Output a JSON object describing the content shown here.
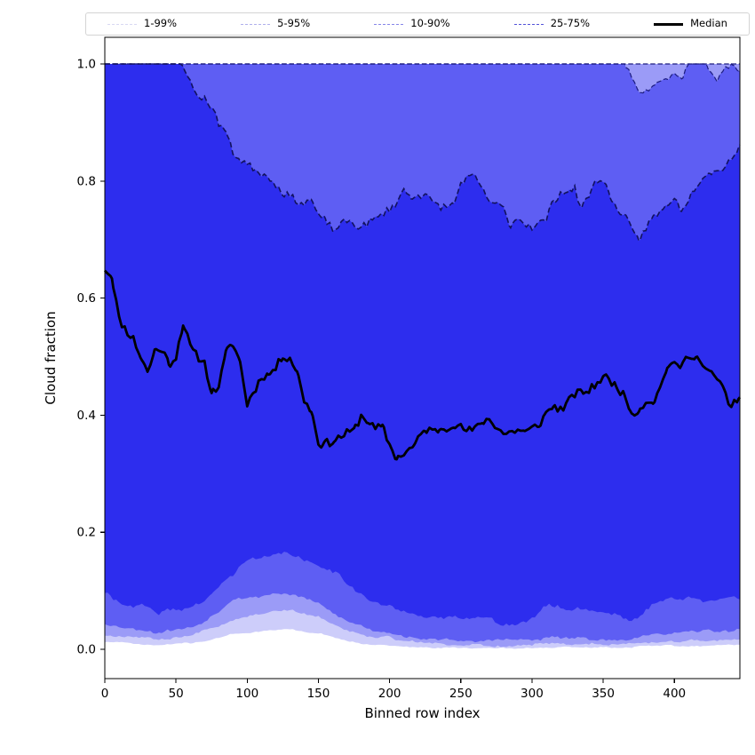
{
  "figure": {
    "background": "#ffffff"
  },
  "legend": {
    "items": [
      {
        "label": "1-99%",
        "color": "#d8d8f2",
        "style": "dashed",
        "weight": 1.6
      },
      {
        "label": "5-95%",
        "color": "#b0b0ec",
        "style": "dashed",
        "weight": 1.6
      },
      {
        "label": "10-90%",
        "color": "#8686e8",
        "style": "dashed",
        "weight": 1.6
      },
      {
        "label": "25-75%",
        "color": "#5252d8",
        "style": "dashed",
        "weight": 1.8
      },
      {
        "label": "Median",
        "color": "#000000",
        "style": "solid",
        "weight": 3
      }
    ]
  },
  "chart_data": {
    "type": "area",
    "title": "",
    "xlabel": "Binned row index",
    "ylabel": "Cloud fraction",
    "xlim": [
      0,
      446
    ],
    "ylim": [
      -0.05,
      1.045
    ],
    "xticks": [
      0,
      50,
      100,
      150,
      200,
      250,
      300,
      350,
      400
    ],
    "yticks": [
      0.0,
      0.2,
      0.4,
      0.6,
      0.8,
      1.0
    ],
    "grid": false,
    "legend_position": "top",
    "x_start": 0,
    "x_sample_step": 5,
    "bands": [
      {
        "name": "1-99%",
        "lower": "p1",
        "upper": "p99",
        "fill": "#cdcdfa"
      },
      {
        "name": "5-95%",
        "lower": "p5",
        "upper": "p95",
        "fill": "#9b9bf7"
      },
      {
        "name": "10-90%",
        "lower": "p10",
        "upper": "p90",
        "fill": "#5e5ef3"
      },
      {
        "name": "25-75%",
        "lower": "p25",
        "upper": "p75",
        "fill": "#2d2dee"
      }
    ],
    "median_style": {
      "color": "#000000",
      "width": 2.8
    },
    "edge_lines": [
      {
        "series": "p99",
        "color": "#1c1c80",
        "width": 1.2,
        "dash": [
          5.5,
          2.8
        ]
      },
      {
        "series": "p90",
        "color": "#1c1c80",
        "width": 1.2,
        "dash": [
          5.5,
          2.8
        ]
      },
      {
        "series": "p75",
        "color": "#12125e",
        "width": 1.6,
        "dash": [
          6,
          3.2
        ]
      }
    ],
    "jitter": {
      "median": [
        0.007,
        0.01
      ],
      "p75": [
        0.006,
        0.009
      ],
      "p90": [
        0.005,
        0.006
      ],
      "p25": [
        0.003,
        0.005
      ],
      "p10": [
        0.002,
        0.003
      ],
      "p5": [
        0.0015,
        0.0022
      ],
      "p1": [
        0.0008,
        0.0012
      ]
    },
    "series": {
      "median": [
        0.655,
        0.64,
        0.565,
        0.545,
        0.53,
        0.495,
        0.47,
        0.52,
        0.52,
        0.49,
        0.5,
        0.555,
        0.52,
        0.505,
        0.49,
        0.44,
        0.46,
        0.51,
        0.52,
        0.49,
        0.42,
        0.45,
        0.475,
        0.47,
        0.48,
        0.5,
        0.495,
        0.47,
        0.42,
        0.4,
        0.36,
        0.36,
        0.35,
        0.355,
        0.36,
        0.365,
        0.39,
        0.385,
        0.375,
        0.38,
        0.35,
        0.33,
        0.34,
        0.35,
        0.36,
        0.37,
        0.375,
        0.385,
        0.38,
        0.385,
        0.385,
        0.38,
        0.38,
        0.395,
        0.4,
        0.385,
        0.37,
        0.375,
        0.38,
        0.375,
        0.38,
        0.385,
        0.4,
        0.405,
        0.405,
        0.42,
        0.44,
        0.445,
        0.44,
        0.45,
        0.455,
        0.455,
        0.455,
        0.43,
        0.4,
        0.41,
        0.43,
        0.43,
        0.45,
        0.48,
        0.485,
        0.495,
        0.505,
        0.5,
        0.483,
        0.47,
        0.46,
        0.44,
        0.42,
        0.435
      ],
      "p75": [
        1.0,
        1.0,
        1.0,
        1.0,
        1.0,
        1.0,
        1.0,
        1.0,
        1.0,
        1.0,
        1.0,
        0.995,
        0.97,
        0.95,
        0.94,
        0.925,
        0.895,
        0.885,
        0.858,
        0.838,
        0.825,
        0.818,
        0.808,
        0.8,
        0.79,
        0.783,
        0.777,
        0.77,
        0.76,
        0.765,
        0.742,
        0.74,
        0.718,
        0.725,
        0.73,
        0.727,
        0.726,
        0.733,
        0.738,
        0.745,
        0.752,
        0.77,
        0.79,
        0.77,
        0.78,
        0.784,
        0.77,
        0.76,
        0.754,
        0.755,
        0.79,
        0.8,
        0.803,
        0.785,
        0.772,
        0.765,
        0.757,
        0.72,
        0.732,
        0.726,
        0.722,
        0.732,
        0.74,
        0.775,
        0.78,
        0.775,
        0.79,
        0.76,
        0.78,
        0.8,
        0.8,
        0.77,
        0.762,
        0.745,
        0.717,
        0.692,
        0.712,
        0.732,
        0.74,
        0.75,
        0.77,
        0.76,
        0.775,
        0.795,
        0.81,
        0.818,
        0.82,
        0.83,
        0.84,
        0.855
      ],
      "p90": [
        1.0,
        1.0,
        1.0,
        1.0,
        1.0,
        1.0,
        1.0,
        1.0,
        1.0,
        1.0,
        1.0,
        1.0,
        1.0,
        1.0,
        1.0,
        1.0,
        1.0,
        1.0,
        1.0,
        1.0,
        1.0,
        1.0,
        1.0,
        1.0,
        1.0,
        1.0,
        1.0,
        1.0,
        1.0,
        1.0,
        1.0,
        1.0,
        1.0,
        1.0,
        1.0,
        1.0,
        1.0,
        1.0,
        1.0,
        1.0,
        1.0,
        1.0,
        1.0,
        1.0,
        1.0,
        1.0,
        1.0,
        1.0,
        1.0,
        1.0,
        1.0,
        1.0,
        1.0,
        1.0,
        1.0,
        1.0,
        1.0,
        1.0,
        1.0,
        1.0,
        1.0,
        1.0,
        1.0,
        1.0,
        1.0,
        1.0,
        1.0,
        1.0,
        1.0,
        1.0,
        1.0,
        1.0,
        1.0,
        1.0,
        0.975,
        0.952,
        0.948,
        0.962,
        0.968,
        0.975,
        0.985,
        0.982,
        1.0,
        1.0,
        1.0,
        0.988,
        0.972,
        0.99,
        1.0,
        0.988
      ],
      "p95": {
        "constant": 1.0
      },
      "p99": {
        "constant": 1.0
      },
      "p25": [
        0.1,
        0.09,
        0.085,
        0.08,
        0.075,
        0.072,
        0.07,
        0.067,
        0.064,
        0.065,
        0.066,
        0.068,
        0.07,
        0.075,
        0.08,
        0.09,
        0.105,
        0.118,
        0.13,
        0.14,
        0.15,
        0.154,
        0.158,
        0.162,
        0.165,
        0.166,
        0.163,
        0.156,
        0.15,
        0.148,
        0.145,
        0.138,
        0.13,
        0.127,
        0.112,
        0.102,
        0.092,
        0.085,
        0.079,
        0.076,
        0.073,
        0.068,
        0.065,
        0.062,
        0.06,
        0.059,
        0.058,
        0.057,
        0.056,
        0.055,
        0.055,
        0.054,
        0.052,
        0.051,
        0.05,
        0.048,
        0.047,
        0.046,
        0.045,
        0.047,
        0.052,
        0.065,
        0.075,
        0.073,
        0.072,
        0.07,
        0.067,
        0.066,
        0.066,
        0.065,
        0.064,
        0.063,
        0.063,
        0.055,
        0.048,
        0.058,
        0.07,
        0.075,
        0.08,
        0.083,
        0.086,
        0.089,
        0.092,
        0.086,
        0.08,
        0.082,
        0.085,
        0.086,
        0.087,
        0.082
      ],
      "p10": [
        0.045,
        0.042,
        0.04,
        0.038,
        0.036,
        0.034,
        0.033,
        0.031,
        0.03,
        0.031,
        0.032,
        0.034,
        0.036,
        0.04,
        0.045,
        0.055,
        0.065,
        0.075,
        0.085,
        0.088,
        0.09,
        0.091,
        0.093,
        0.094,
        0.096,
        0.097,
        0.095,
        0.092,
        0.09,
        0.084,
        0.078,
        0.07,
        0.063,
        0.056,
        0.05,
        0.044,
        0.038,
        0.035,
        0.033,
        0.03,
        0.028,
        0.026,
        0.024,
        0.022,
        0.02,
        0.019,
        0.018,
        0.018,
        0.017,
        0.016,
        0.015,
        0.015,
        0.015,
        0.014,
        0.014,
        0.014,
        0.014,
        0.015,
        0.015,
        0.015,
        0.015,
        0.018,
        0.02,
        0.02,
        0.019,
        0.019,
        0.018,
        0.018,
        0.018,
        0.018,
        0.018,
        0.018,
        0.018,
        0.019,
        0.02,
        0.021,
        0.021,
        0.024,
        0.027,
        0.029,
        0.03,
        0.031,
        0.032,
        0.032,
        0.031,
        0.032,
        0.032,
        0.033,
        0.034,
        0.035
      ],
      "p5": [
        0.025,
        0.023,
        0.022,
        0.021,
        0.02,
        0.019,
        0.019,
        0.018,
        0.018,
        0.019,
        0.02,
        0.021,
        0.022,
        0.028,
        0.032,
        0.036,
        0.04,
        0.047,
        0.052,
        0.054,
        0.055,
        0.058,
        0.06,
        0.062,
        0.065,
        0.067,
        0.067,
        0.063,
        0.06,
        0.057,
        0.055,
        0.048,
        0.042,
        0.037,
        0.032,
        0.028,
        0.024,
        0.022,
        0.021,
        0.021,
        0.02,
        0.016,
        0.014,
        0.013,
        0.012,
        0.011,
        0.01,
        0.009,
        0.008,
        0.007,
        0.007,
        0.007,
        0.007,
        0.007,
        0.007,
        0.007,
        0.007,
        0.007,
        0.008,
        0.008,
        0.008,
        0.009,
        0.009,
        0.009,
        0.009,
        0.009,
        0.008,
        0.008,
        0.008,
        0.009,
        0.009,
        0.009,
        0.009,
        0.01,
        0.01,
        0.011,
        0.011,
        0.012,
        0.013,
        0.014,
        0.014,
        0.015,
        0.015,
        0.015,
        0.015,
        0.016,
        0.016,
        0.017,
        0.018,
        0.019
      ],
      "p1": [
        0.013,
        0.012,
        0.011,
        0.011,
        0.01,
        0.009,
        0.009,
        0.008,
        0.008,
        0.009,
        0.01,
        0.011,
        0.011,
        0.013,
        0.015,
        0.017,
        0.02,
        0.023,
        0.026,
        0.027,
        0.027,
        0.029,
        0.03,
        0.032,
        0.033,
        0.035,
        0.035,
        0.032,
        0.03,
        0.029,
        0.027,
        0.024,
        0.02,
        0.018,
        0.015,
        0.013,
        0.01,
        0.009,
        0.008,
        0.007,
        0.006,
        0.005,
        0.005,
        0.004,
        0.004,
        0.004,
        0.003,
        0.003,
        0.003,
        0.003,
        0.002,
        0.002,
        0.002,
        0.002,
        0.002,
        0.002,
        0.002,
        0.002,
        0.002,
        0.002,
        0.002,
        0.003,
        0.003,
        0.003,
        0.003,
        0.003,
        0.003,
        0.003,
        0.003,
        0.003,
        0.003,
        0.003,
        0.003,
        0.004,
        0.004,
        0.005,
        0.005,
        0.006,
        0.006,
        0.006,
        0.006,
        0.006,
        0.006,
        0.006,
        0.006,
        0.007,
        0.007,
        0.008,
        0.008,
        0.008
      ]
    }
  }
}
